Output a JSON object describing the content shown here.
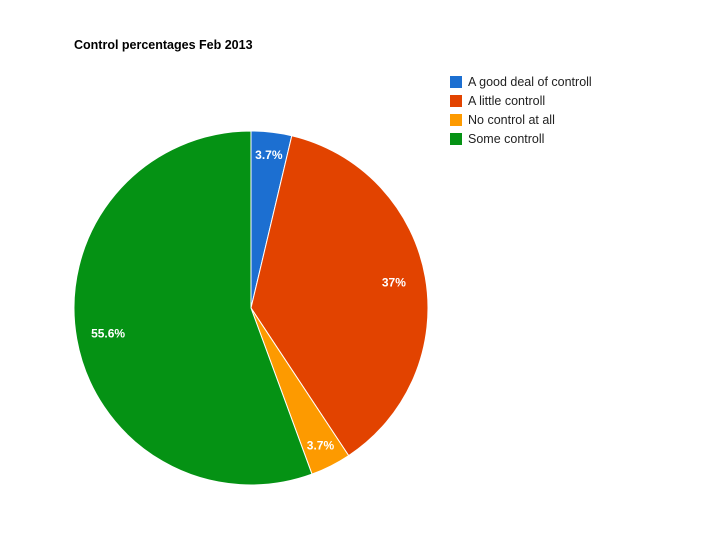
{
  "chart_data": {
    "type": "pie",
    "title": "Control percentages Feb 2013",
    "categories": [
      "A good deal of controll",
      "A little controll",
      "No control at all",
      "Some controll"
    ],
    "values": [
      3.7,
      37,
      3.7,
      55.6
    ],
    "labels": [
      "3.7%",
      "37%",
      "3.7%",
      "55.6%"
    ],
    "colors": [
      "#1c6fd1",
      "#e24300",
      "#fd9a00",
      "#059214"
    ],
    "legend_position": "right",
    "start_angle": "12 o'clock, clockwise",
    "grid": false
  },
  "title": "Control percentages Feb 2013",
  "legend": {
    "items": [
      {
        "label": "A good deal of controll",
        "color": "#1c6fd1"
      },
      {
        "label": "A little controll",
        "color": "#e24300"
      },
      {
        "label": "No control at all",
        "color": "#fd9a00"
      },
      {
        "label": "Some controll",
        "color": "#059214"
      }
    ]
  },
  "slice_labels": [
    "3.7%",
    "37%",
    "3.7%",
    "55.6%"
  ]
}
